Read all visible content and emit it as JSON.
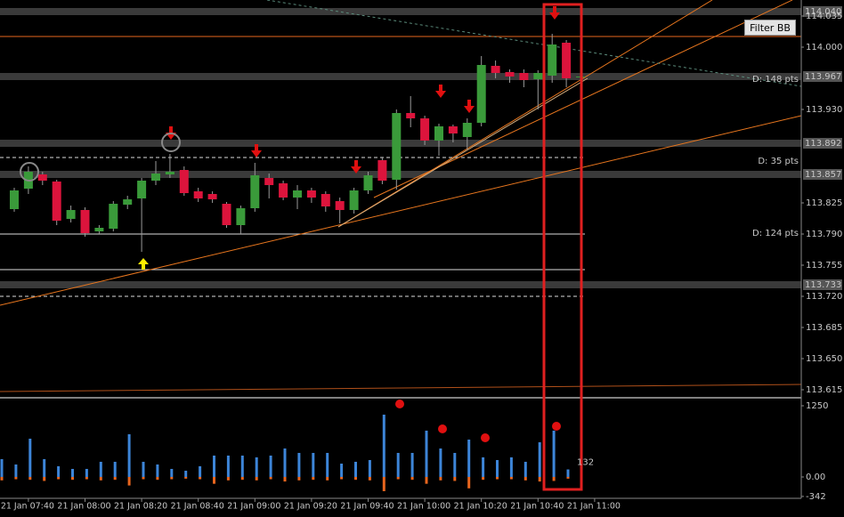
{
  "button": "Filter BB",
  "chart_data": [
    {
      "type": "candlestick",
      "categories": [
        null,
        "21 Jan 07:40",
        null,
        null,
        null,
        "21 Jan 08:00",
        null,
        null,
        null,
        "21 Jan 08:20",
        null,
        null,
        null,
        "21 Jan 08:40",
        null,
        null,
        null,
        "21 Jan 09:00",
        null,
        null,
        null,
        "21 Jan 09:20",
        null,
        null,
        null,
        "21 Jan 09:40",
        null,
        null,
        null,
        "21 Jan 10:00",
        null,
        null,
        null,
        "21 Jan 10:20",
        null,
        null,
        null,
        "21 Jan 10:40",
        null,
        null,
        null,
        "21 Jan 11:00"
      ],
      "open": [
        113.818,
        113.841,
        113.857,
        113.849,
        113.807,
        113.817,
        113.793,
        113.796,
        113.823,
        113.83,
        113.85,
        113.857,
        113.862,
        113.838,
        113.835,
        113.824,
        113.8,
        113.819,
        113.853,
        113.847,
        113.831,
        113.839,
        113.835,
        113.827,
        113.817,
        113.839,
        113.873,
        113.851,
        113.926,
        113.92,
        113.895,
        113.911,
        113.899,
        113.915,
        113.979,
        113.972,
        113.971,
        113.964,
        113.968,
        114.005,
        113.966,
        null
      ],
      "high": [
        113.842,
        113.866,
        113.86,
        113.851,
        113.822,
        113.82,
        113.8,
        113.827,
        113.833,
        113.853,
        113.872,
        113.88,
        113.866,
        113.842,
        113.838,
        113.826,
        113.822,
        113.87,
        113.858,
        113.85,
        113.845,
        113.842,
        113.838,
        113.831,
        113.842,
        113.86,
        113.876,
        113.93,
        113.945,
        113.923,
        113.914,
        113.913,
        113.92,
        113.99,
        113.985,
        113.975,
        113.975,
        113.974,
        114.015,
        114.008,
        113.97,
        null
      ],
      "low": [
        113.815,
        113.835,
        113.845,
        113.8,
        113.803,
        113.787,
        113.79,
        113.793,
        113.818,
        113.77,
        113.845,
        113.853,
        113.833,
        113.826,
        113.825,
        113.797,
        113.79,
        113.815,
        113.83,
        113.828,
        113.818,
        113.825,
        113.815,
        113.802,
        113.813,
        113.835,
        113.846,
        113.84,
        113.91,
        113.89,
        113.878,
        113.893,
        113.885,
        113.911,
        113.965,
        113.96,
        113.955,
        113.93,
        113.96,
        113.955,
        113.96,
        null
      ],
      "close": [
        113.839,
        113.86,
        113.85,
        113.805,
        113.817,
        113.791,
        113.797,
        113.824,
        113.829,
        113.85,
        113.858,
        113.86,
        113.836,
        113.83,
        113.829,
        113.8,
        113.819,
        113.856,
        113.845,
        113.831,
        113.839,
        113.831,
        113.821,
        113.817,
        113.839,
        113.856,
        113.85,
        113.926,
        113.92,
        113.895,
        113.911,
        113.903,
        113.915,
        113.98,
        113.971,
        113.967,
        113.963,
        113.971,
        114.003,
        113.965,
        113.967,
        null
      ],
      "up_color": "#3a9a3a",
      "down_color": "#dc143c",
      "ylim": [
        113.608,
        114.053
      ],
      "yticks": [
        {
          "value": 114.035,
          "label": "114.035"
        },
        {
          "value": 114.0,
          "label": "114.000"
        },
        {
          "value": 113.93,
          "label": "113.930"
        },
        {
          "value": 113.825,
          "label": "113.825"
        },
        {
          "value": 113.79,
          "label": "113.790"
        },
        {
          "value": 113.755,
          "label": "113.755"
        },
        {
          "value": 113.72,
          "label": "113.720"
        },
        {
          "value": 113.685,
          "label": "113.685"
        },
        {
          "value": 113.65,
          "label": "113.650"
        },
        {
          "value": 113.615,
          "label": "113.615"
        }
      ],
      "price_labels": [
        {
          "value": 114.04,
          "label": "114.040"
        },
        {
          "value": 113.967,
          "label": "113.967"
        },
        {
          "value": 113.892,
          "label": "113.892"
        },
        {
          "value": 113.857,
          "label": "113.857"
        },
        {
          "value": 113.733,
          "label": "113.733"
        }
      ],
      "levels": [
        {
          "value": 114.012,
          "color": "#e8661e",
          "dashed": false,
          "extend": true
        },
        {
          "value": 113.967,
          "color": "#bbbbbb",
          "dashed": false,
          "extend": true
        },
        {
          "value": 113.876,
          "color": "#dddddd",
          "dashed": true,
          "extend": false
        },
        {
          "value": 113.79,
          "color": "#dddddd",
          "dashed": false,
          "extend": false
        },
        {
          "value": 113.75,
          "color": "#dddddd",
          "dashed": false,
          "extend": false
        },
        {
          "value": 113.72,
          "color": "#dddddd",
          "dashed": true,
          "extend": false
        }
      ],
      "annotations": [
        "D: 148 pts",
        "D: 35 pts",
        "D: 124 pts"
      ]
    },
    {
      "type": "bar",
      "series": [
        {
          "name": "buy",
          "color": "#3d85d8",
          "values": [
            313,
            219,
            672,
            313,
            188,
            141,
            141,
            266,
            266,
            750,
            266,
            219,
            141,
            109,
            188,
            375,
            375,
            375,
            344,
            375,
            500,
            422,
            422,
            422,
            234,
            266,
            297,
            1094,
            422,
            422,
            813,
            500,
            422,
            656,
            344,
            297,
            344,
            266,
            609,
            813,
            132,
            null
          ]
        },
        {
          "name": "sell",
          "color": "#e8661e",
          "values": [
            -60,
            -40,
            -50,
            -70,
            -40,
            -50,
            -40,
            -60,
            -50,
            -150,
            -40,
            -50,
            -40,
            -30,
            -40,
            -120,
            -60,
            -50,
            -60,
            -40,
            -80,
            -60,
            -50,
            -60,
            -40,
            -50,
            -60,
            -250,
            -40,
            -50,
            -120,
            -60,
            -70,
            -200,
            -50,
            -40,
            -40,
            -60,
            -80,
            -70,
            -30,
            null
          ]
        }
      ],
      "ylim": [
        -344,
        1375
      ],
      "yticks": [
        1250,
        {
          "value": 0,
          "label": "0.00"
        },
        -342
      ]
    }
  ]
}
